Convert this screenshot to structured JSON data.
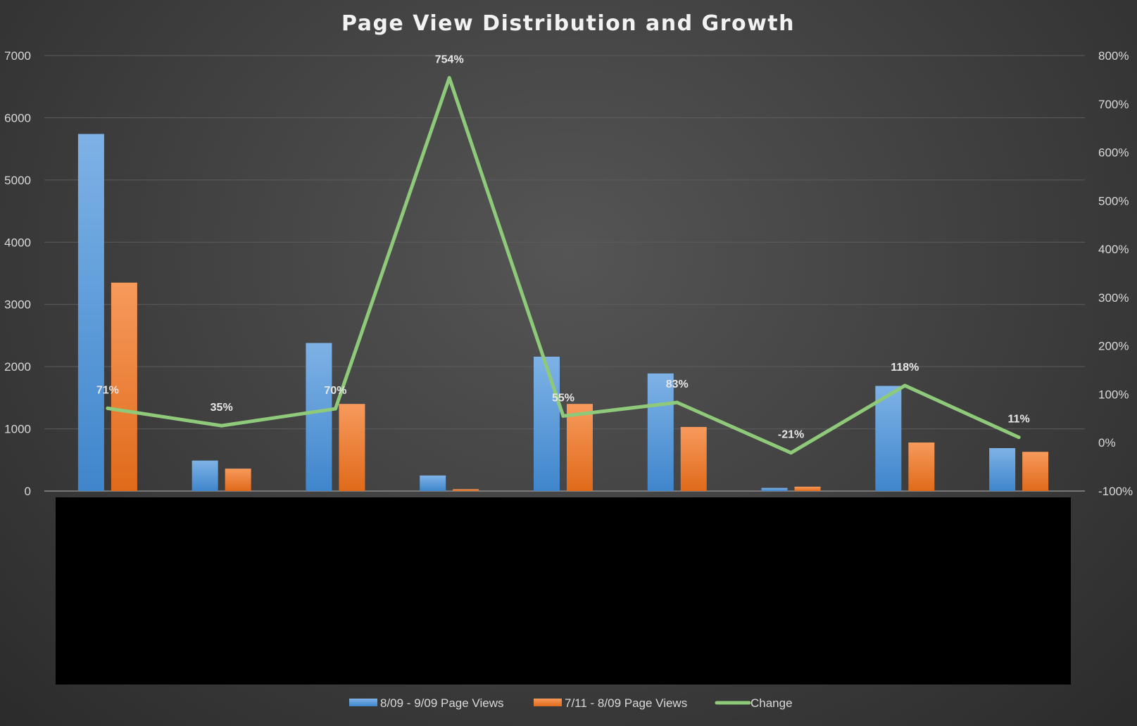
{
  "chart_data": {
    "type": "bar",
    "title": "Page View Distribution and Growth",
    "categories": [
      "",
      "",
      "",
      "",
      "",
      "",
      "",
      "",
      ""
    ],
    "series": [
      {
        "name": "8/09 - 9/09 Page Views",
        "type": "bar",
        "axis": "left",
        "color": "#5b9bd5",
        "values": [
          5740,
          490,
          2380,
          250,
          2160,
          1890,
          50,
          1690,
          690
        ]
      },
      {
        "name": "7/11 - 8/09 Page Views",
        "type": "bar",
        "axis": "left",
        "color": "#ed7d31",
        "values": [
          3350,
          360,
          1400,
          30,
          1400,
          1030,
          70,
          780,
          630
        ]
      },
      {
        "name": "Change",
        "type": "line",
        "axis": "right",
        "color": "#8fc97a",
        "values": [
          71,
          35,
          70,
          754,
          55,
          83,
          -21,
          118,
          11
        ],
        "labels": [
          "71%",
          "35%",
          "70%",
          "754%",
          "55%",
          "83%",
          "-21%",
          "118%",
          "11%"
        ]
      }
    ],
    "y_left": {
      "ticks": [
        "0",
        "1000",
        "2000",
        "3000",
        "4000",
        "5000",
        "6000",
        "7000"
      ],
      "range": [
        0,
        7000
      ]
    },
    "y_right": {
      "ticks": [
        "-100%",
        "0%",
        "100%",
        "200%",
        "300%",
        "400%",
        "500%",
        "600%",
        "700%",
        "800%"
      ],
      "range": [
        -100,
        800
      ]
    },
    "grid": true,
    "legend_position": "bottom",
    "category_labels_redacted": true
  }
}
